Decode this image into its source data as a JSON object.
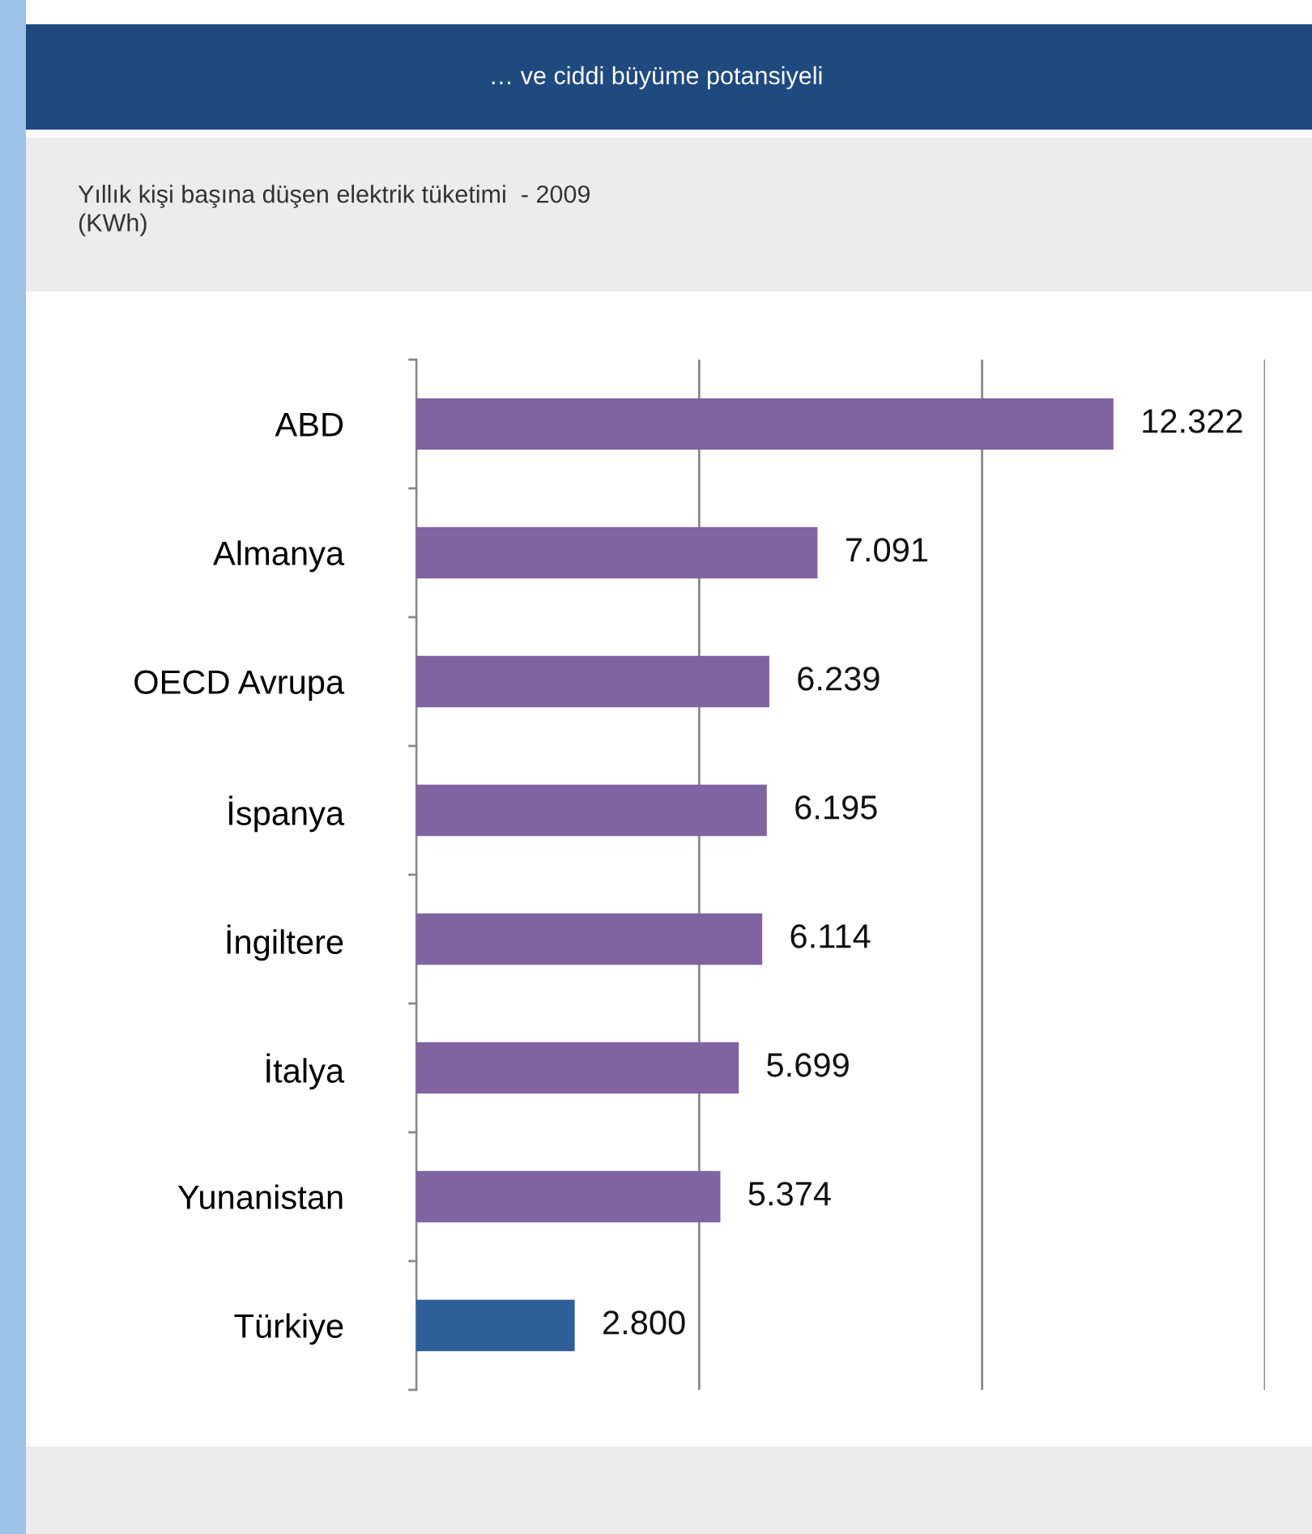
{
  "chart_data": {
    "type": "bar",
    "orientation": "horizontal",
    "title": "… ve ciddi büyüme potansiyeli",
    "subtitle": "Yıllık kişi başına düşen elektrik tüketimi  - 2009\n(KWh)",
    "categories": [
      "ABD",
      "Almanya",
      "OECD Avrupa",
      "İspanya",
      "İngiltere",
      "İtalya",
      "Yunanistan",
      "Türkiye"
    ],
    "values": [
      12322,
      7091,
      6239,
      6195,
      6114,
      5699,
      5374,
      2800
    ],
    "value_labels": [
      "12.322",
      "7.091",
      "6.239",
      "6.195",
      "6.114",
      "5.699",
      "5.374",
      "2.800"
    ],
    "colors": [
      "#8064a2",
      "#8064a2",
      "#8064a2",
      "#8064a2",
      "#8064a2",
      "#8064a2",
      "#8064a2",
      "#2e5f99"
    ],
    "xlim": [
      0,
      15000
    ],
    "xticks": [
      {
        "value": 0,
        "label": null
      },
      {
        "value": 5000,
        "label": null
      },
      {
        "value": 10000,
        "label": null
      },
      {
        "value": 15000,
        "label": null
      }
    ],
    "grid": "x",
    "tick_labels": "y",
    "legend": false
  }
}
